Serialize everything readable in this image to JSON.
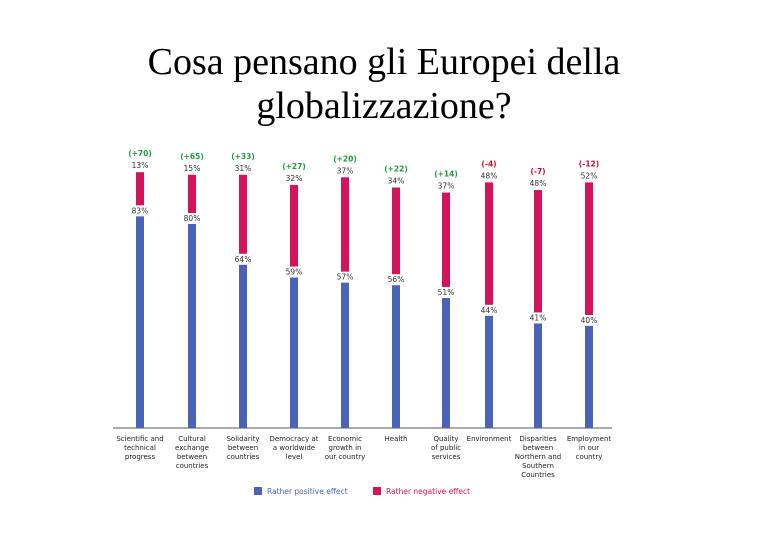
{
  "slide": {
    "title_line1": "Cosa pensano gli Europei della",
    "title_line2": "globalizzazione?"
  },
  "colors": {
    "positive": "#4a62b8",
    "negative": "#d4145a",
    "diff_positive": "#1f9a3c",
    "diff_negative": "#c8102e",
    "label_text": "#333333"
  },
  "chart_data": {
    "type": "bar",
    "stacked_vertical_pairs": true,
    "categories": [
      [
        "Scientific and",
        "technical",
        "progress"
      ],
      [
        "Cultural",
        "exchange",
        "between",
        "countries"
      ],
      [
        "Solidarity",
        "between",
        "countries"
      ],
      [
        "Democracy at",
        "a worldwide",
        "level"
      ],
      [
        "Economic",
        "growth in",
        "our country"
      ],
      [
        "Health"
      ],
      [
        "Quality",
        "of public",
        "services"
      ],
      [
        "Environment"
      ],
      [
        "Disparities",
        "between",
        "Northern and",
        "Southern",
        "Countries"
      ],
      [
        "Employment",
        "in our",
        "country"
      ]
    ],
    "series": [
      {
        "name": "Rather positive effect",
        "values": [
          83,
          80,
          64,
          59,
          57,
          56,
          51,
          44,
          41,
          40
        ],
        "labels": [
          "83%",
          "80%",
          "64%",
          "59%",
          "57%",
          "56%",
          "51%",
          "44%",
          "41%",
          "40%"
        ]
      },
      {
        "name": "Rather negative effect",
        "values": [
          13,
          15,
          31,
          32,
          37,
          34,
          37,
          48,
          48,
          52
        ],
        "labels": [
          "13%",
          "15%",
          "31%",
          "32%",
          "37%",
          "34%",
          "37%",
          "48%",
          "48%",
          "52%"
        ]
      }
    ],
    "differences": [
      "(+70)",
      "(+65)",
      "(+33)",
      "(+27)",
      "(+20)",
      "(+22)",
      "(+14)",
      "(-4)",
      "(-7)",
      "(-12)"
    ],
    "legend": [
      "Rather positive effect",
      "Rather negative effect"
    ],
    "legend_position": "bottom",
    "grid": false
  }
}
